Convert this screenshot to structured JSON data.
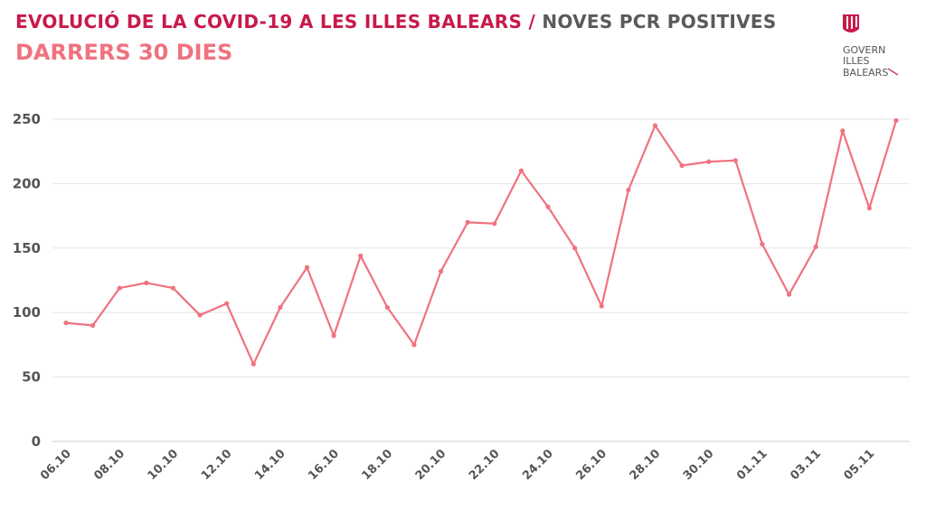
{
  "header": {
    "title_main": "EVOLUCIÓ DE LA COVID-19 A LES ILLES BALEARS",
    "title_sep": " / ",
    "title_secondary": "NOVES PCR POSITIVES",
    "subtitle": "DARRERS 30 DIES"
  },
  "logo": {
    "lines": [
      "GOVERN",
      "ILLES",
      "BALEARS"
    ]
  },
  "colors": {
    "accent": "#c8194b",
    "line": "#f0727f",
    "grid": "#e6e6e6"
  },
  "chart_data": {
    "type": "line",
    "title": "NOVES PCR POSITIVES",
    "xlabel": "",
    "ylabel": "",
    "ylim": [
      0,
      250
    ],
    "yticks": [
      0,
      50,
      100,
      150,
      200,
      250
    ],
    "grid": true,
    "x": [
      "06.10",
      "07.10",
      "08.10",
      "09.10",
      "10.10",
      "11.10",
      "12.10",
      "13.10",
      "14.10",
      "15.10",
      "16.10",
      "17.10",
      "18.10",
      "19.10",
      "20.10",
      "21.10",
      "22.10",
      "23.10",
      "24.10",
      "25.10",
      "26.10",
      "27.10",
      "28.10",
      "29.10",
      "30.10",
      "31.10",
      "01.11",
      "02.11",
      "03.11",
      "04.11",
      "05.11",
      "06.11"
    ],
    "xtick_labels": [
      "06.10",
      "08.10",
      "10.10",
      "12.10",
      "14.10",
      "16.10",
      "18.10",
      "20.10",
      "22.10",
      "24.10",
      "26.10",
      "28.10",
      "30.10",
      "01.11",
      "03.11",
      "05.11"
    ],
    "series": [
      {
        "name": "Noves PCR positives",
        "values": [
          92,
          90,
          119,
          123,
          119,
          98,
          107,
          60,
          104,
          135,
          82,
          144,
          104,
          75,
          132,
          170,
          169,
          210,
          182,
          150,
          105,
          195,
          245,
          214,
          217,
          218,
          153,
          114,
          151,
          241,
          181,
          249
        ]
      }
    ]
  }
}
